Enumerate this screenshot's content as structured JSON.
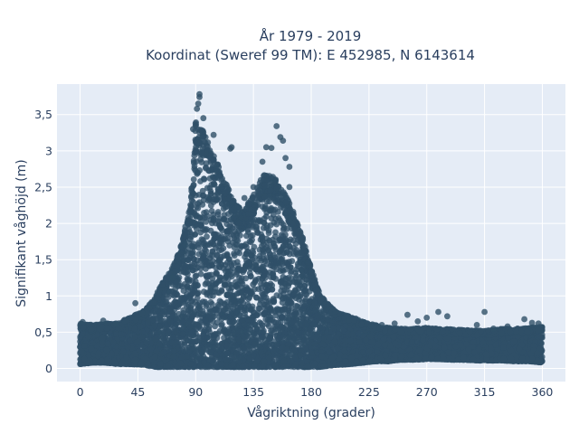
{
  "chart_data": {
    "type": "scatter",
    "title_line1": "År 1979 - 2019",
    "title_line2": "Koordinat (Sweref 99 TM): E 452985, N 6143614",
    "xlabel": "Vågriktning (grader)",
    "ylabel": "Signifikant våghöjd (m)",
    "xlim": [
      -18,
      378
    ],
    "ylim": [
      -0.18,
      3.92
    ],
    "xticks": [
      0,
      45,
      90,
      135,
      180,
      225,
      270,
      315,
      360
    ],
    "xtick_labels": [
      "0",
      "45",
      "90",
      "135",
      "180",
      "225",
      "270",
      "315",
      "360"
    ],
    "yticks": [
      0,
      0.5,
      1,
      1.5,
      2,
      2.5,
      3,
      3.5
    ],
    "ytick_labels": [
      "0",
      "0,5",
      "1",
      "1,5",
      "2",
      "2,5",
      "3",
      "3,5"
    ],
    "grid": true,
    "colors": {
      "plot_bg": "#e5ecf6",
      "grid": "#ffffff",
      "marker": "#2f5068",
      "text": "#2a3f5f"
    },
    "envelope": {
      "x": [
        0,
        10,
        20,
        30,
        40,
        50,
        55,
        60,
        65,
        70,
        75,
        80,
        85,
        88,
        90,
        92,
        95,
        98,
        100,
        105,
        110,
        115,
        120,
        125,
        130,
        135,
        140,
        145,
        150,
        155,
        160,
        165,
        170,
        175,
        180,
        185,
        190,
        195,
        200,
        210,
        220,
        230,
        240,
        250,
        260,
        270,
        280,
        290,
        300,
        310,
        320,
        330,
        340,
        350,
        360
      ],
      "max_y": [
        0.62,
        0.6,
        0.62,
        0.63,
        0.72,
        0.8,
        0.9,
        1.05,
        1.2,
        1.35,
        1.5,
        1.8,
        2.2,
        2.7,
        3.4,
        3.35,
        3.3,
        3.2,
        3.1,
        2.9,
        2.7,
        2.5,
        2.3,
        2.2,
        2.25,
        2.4,
        2.6,
        2.7,
        2.65,
        2.6,
        2.4,
        2.2,
        2.0,
        1.7,
        1.4,
        1.1,
        0.95,
        0.85,
        0.78,
        0.72,
        0.65,
        0.6,
        0.56,
        0.55,
        0.55,
        0.56,
        0.55,
        0.54,
        0.53,
        0.52,
        0.53,
        0.55,
        0.55,
        0.56,
        0.58
      ],
      "min_y": [
        0.06,
        0.08,
        0.08,
        0.06,
        0.06,
        0.05,
        0.03,
        0.02,
        0.02,
        0.02,
        0.02,
        0.02,
        0.02,
        0.02,
        0.02,
        0.02,
        0.02,
        0.02,
        0.02,
        0.02,
        0.02,
        0.02,
        0.02,
        0.02,
        0.02,
        0.02,
        0.02,
        0.02,
        0.02,
        0.02,
        0.02,
        0.02,
        0.02,
        0.02,
        0.02,
        0.02,
        0.03,
        0.04,
        0.05,
        0.06,
        0.08,
        0.1,
        0.1,
        0.12,
        0.12,
        0.13,
        0.13,
        0.12,
        0.12,
        0.11,
        0.11,
        0.11,
        0.1,
        0.1,
        0.08
      ]
    },
    "outliers": [
      {
        "x": 93,
        "y": 3.78
      },
      {
        "x": 93,
        "y": 3.74
      },
      {
        "x": 92,
        "y": 3.65
      },
      {
        "x": 91,
        "y": 3.58
      },
      {
        "x": 96,
        "y": 3.45
      },
      {
        "x": 88,
        "y": 3.3
      },
      {
        "x": 104,
        "y": 3.22
      },
      {
        "x": 118,
        "y": 3.05
      },
      {
        "x": 117,
        "y": 3.03
      },
      {
        "x": 145,
        "y": 3.05
      },
      {
        "x": 149,
        "y": 3.04
      },
      {
        "x": 153,
        "y": 3.34
      },
      {
        "x": 156,
        "y": 3.19
      },
      {
        "x": 158,
        "y": 3.14
      },
      {
        "x": 142,
        "y": 2.85
      },
      {
        "x": 163,
        "y": 2.78
      },
      {
        "x": 163,
        "y": 2.5
      },
      {
        "x": 135,
        "y": 2.5
      },
      {
        "x": 128,
        "y": 2.35
      },
      {
        "x": 160,
        "y": 2.9
      },
      {
        "x": 82,
        "y": 1.7
      },
      {
        "x": 72,
        "y": 1.25
      },
      {
        "x": 43,
        "y": 0.9
      },
      {
        "x": 255,
        "y": 0.74
      },
      {
        "x": 263,
        "y": 0.65
      },
      {
        "x": 270,
        "y": 0.7
      },
      {
        "x": 279,
        "y": 0.78
      },
      {
        "x": 286,
        "y": 0.72
      },
      {
        "x": 309,
        "y": 0.6
      },
      {
        "x": 315,
        "y": 0.78
      },
      {
        "x": 322,
        "y": 0.55
      },
      {
        "x": 346,
        "y": 0.68
      },
      {
        "x": 352,
        "y": 0.63
      },
      {
        "x": 357,
        "y": 0.62
      },
      {
        "x": 2,
        "y": 0.64
      },
      {
        "x": 18,
        "y": 0.66
      },
      {
        "x": 28,
        "y": 0.62
      },
      {
        "x": 333,
        "y": 0.58
      },
      {
        "x": 245,
        "y": 0.62
      },
      {
        "x": 235,
        "y": 0.6
      }
    ]
  }
}
